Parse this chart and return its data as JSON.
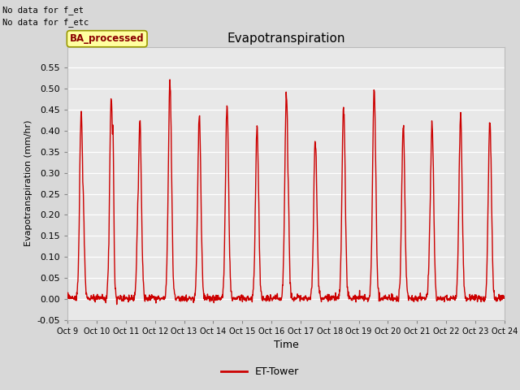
{
  "title": "Evapotranspiration",
  "ylabel": "Evapotranspiration (mm/hr)",
  "xlabel": "Time",
  "ylim": [
    -0.05,
    0.6
  ],
  "line_color": "#cc0000",
  "line_width": 1.0,
  "fig_bg_color": "#d8d8d8",
  "plot_bg_color": "#e8e8e8",
  "note1": "No data for f_et",
  "note2": "No data for f_etc",
  "legend_label": "ET-Tower",
  "legend_box_color": "#ffffcc",
  "legend_box_label": "BA_processed",
  "n_days": 15,
  "daily_peaks": [
    0.45,
    0.48,
    0.42,
    0.52,
    0.44,
    0.46,
    0.41,
    0.49,
    0.38,
    0.46,
    0.5,
    0.41,
    0.42,
    0.43,
    0.42
  ],
  "tick_labels": [
    "Oct 9",
    "Oct 10",
    "Oct 11",
    "Oct 12",
    "Oct 13",
    "Oct 14",
    "Oct 15",
    "Oct 16",
    "Oct 17",
    "Oct 18",
    "Oct 19",
    "Oct 20",
    "Oct 21",
    "Oct 22",
    "Oct 23",
    "Oct 24"
  ]
}
